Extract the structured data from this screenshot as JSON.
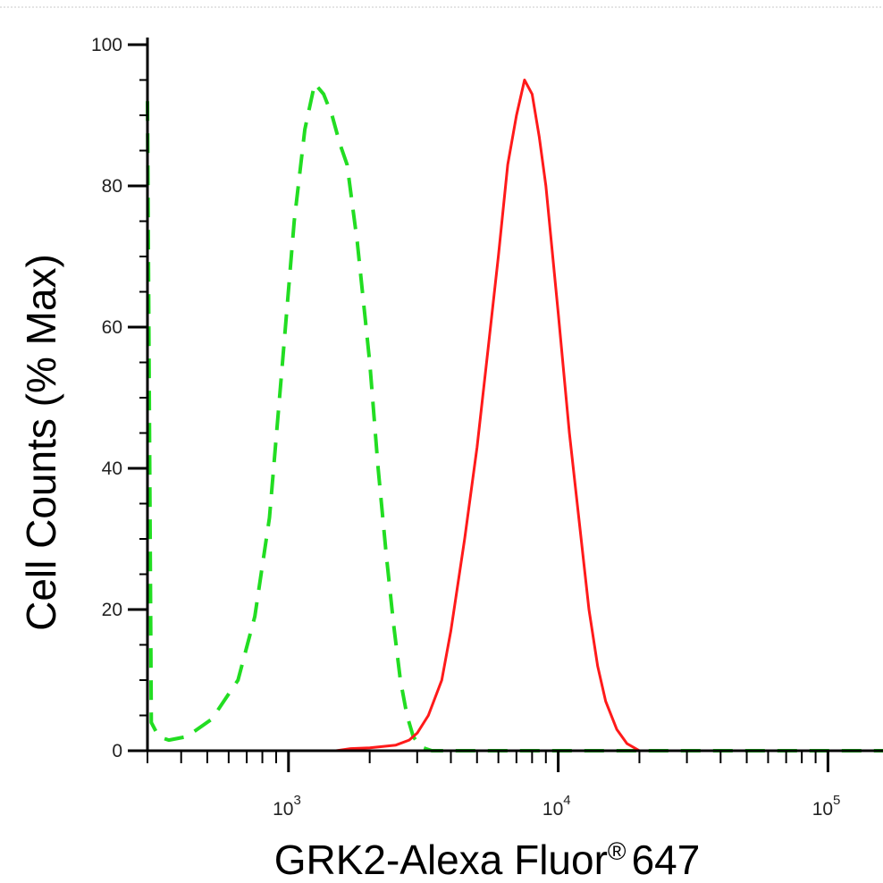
{
  "chart_data": {
    "type": "line",
    "xlabel": "GRK2-Alexa Fluor",
    "xlabel_superscript": "®",
    "xlabel_suffix": "647",
    "ylabel": "Cell Counts (% Max)",
    "xscale": "log",
    "xlim": [
      300,
      160000
    ],
    "ylim": [
      0,
      100
    ],
    "y_ticks": [
      0,
      20,
      40,
      60,
      80,
      100
    ],
    "y_tick_labels": [
      "0",
      "20",
      "40",
      "60",
      "80",
      "100"
    ],
    "x_ticks": [
      {
        "value": 1000,
        "base": "10",
        "exp": "3"
      },
      {
        "value": 10000,
        "base": "10",
        "exp": "4"
      },
      {
        "value": 100000,
        "base": "10",
        "exp": "5"
      }
    ],
    "grid": false,
    "legend": "none",
    "series": [
      {
        "color": "#22dd22",
        "style": "dashed",
        "x": [
          300,
          310,
          330,
          360,
          420,
          520,
          650,
          750,
          850,
          950,
          1050,
          1150,
          1250,
          1350,
          1450,
          1550,
          1650,
          1800,
          2000,
          2150,
          2300,
          2450,
          2600,
          2750,
          2900,
          3100,
          3400,
          4000,
          6000,
          10000,
          20000,
          50000,
          100000,
          160000
        ],
        "y": [
          92,
          4,
          2,
          1.5,
          2,
          4.5,
          10,
          19,
          33,
          55,
          75,
          88,
          94.5,
          93,
          90,
          86,
          83,
          72,
          55,
          40,
          28,
          18,
          10,
          5,
          2,
          0.5,
          0,
          0,
          0,
          0,
          0,
          0,
          0,
          0
        ]
      },
      {
        "color": "#ff1a1a",
        "style": "solid",
        "x": [
          300,
          1000,
          1500,
          1700,
          2000,
          2500,
          2800,
          3000,
          3300,
          3700,
          4000,
          4500,
          5000,
          5500,
          6000,
          6500,
          7000,
          7500,
          8000,
          8500,
          9000,
          10000,
          11000,
          12000,
          13000,
          14000,
          15000,
          16500,
          18000,
          20000,
          30000,
          160000
        ],
        "y": [
          0,
          0,
          0,
          0.3,
          0.4,
          0.8,
          1.5,
          2.5,
          5,
          10,
          17,
          30,
          43,
          57,
          70,
          83,
          90,
          95,
          93,
          87,
          80,
          62,
          45,
          32,
          20,
          12,
          7,
          3,
          1,
          0,
          0,
          0
        ]
      }
    ]
  }
}
